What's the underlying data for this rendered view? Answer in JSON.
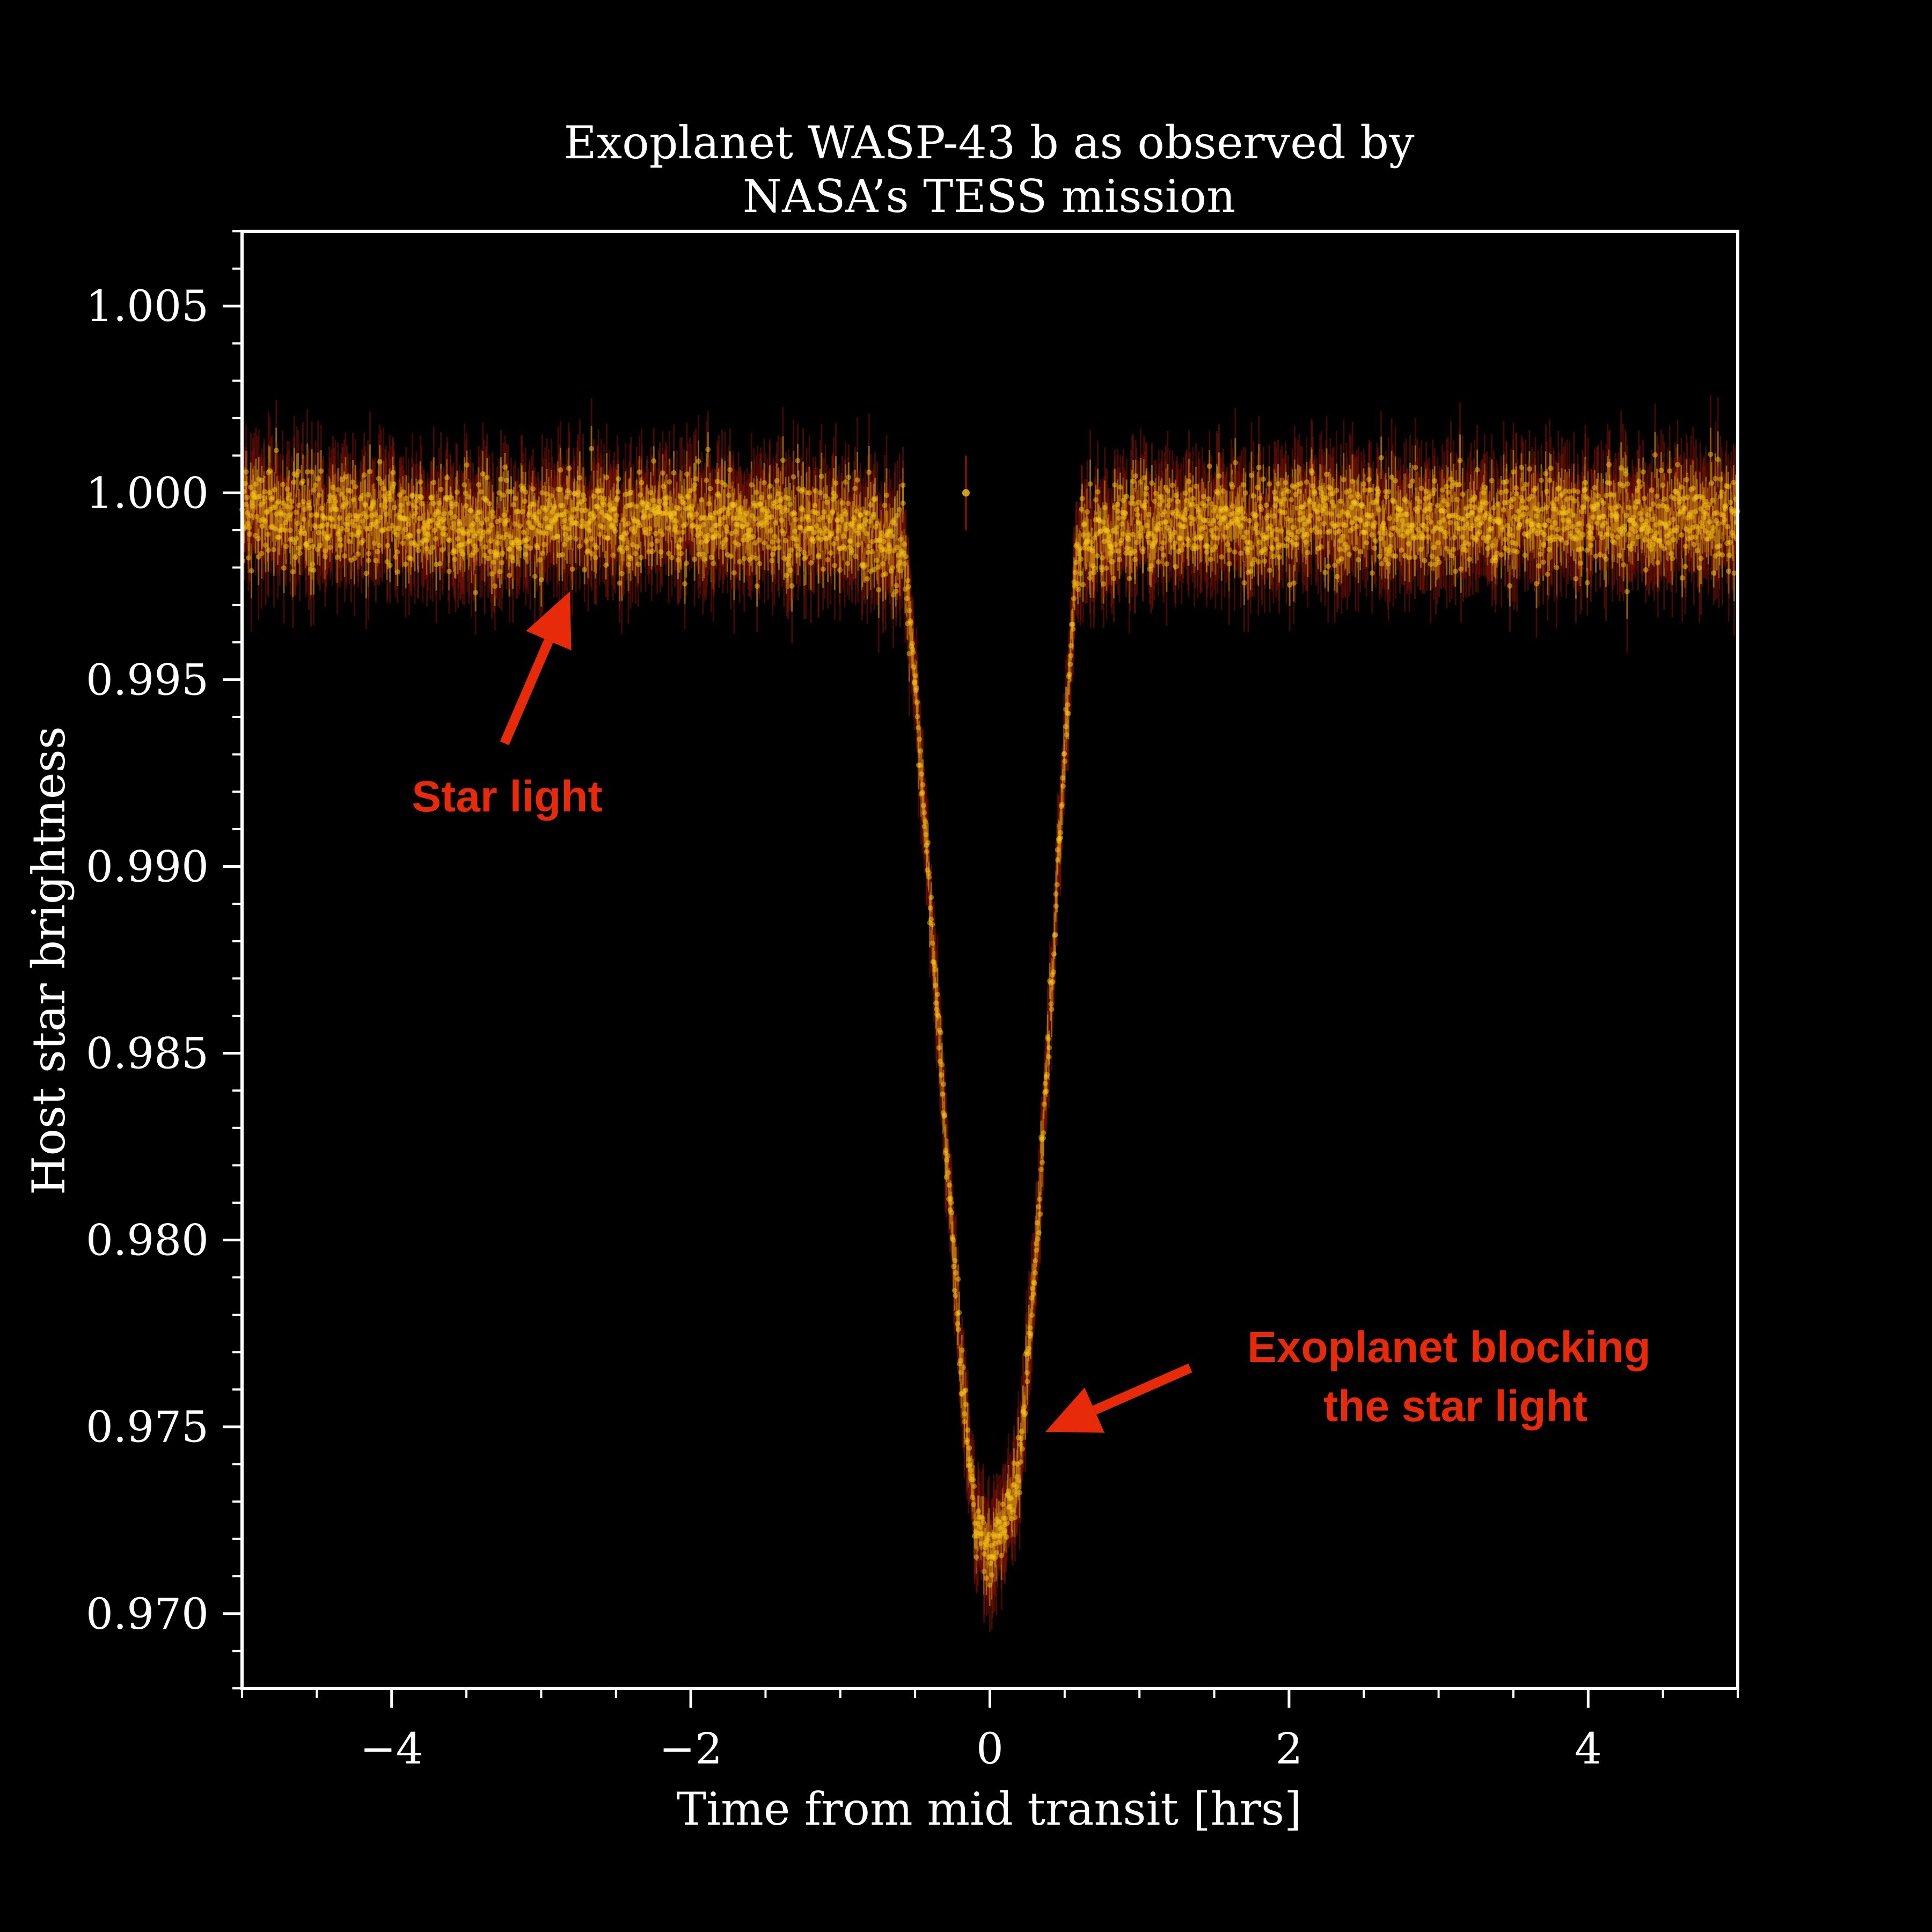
{
  "chart_data": {
    "type": "scatter",
    "title_lines": [
      "Exoplanet WASP-43 b as observed by",
      "NASA’s TESS mission"
    ],
    "xlabel": "Time from mid transit [hrs]",
    "ylabel": "Host star brightness",
    "xlim": [
      -5,
      5
    ],
    "ylim": [
      0.968,
      1.007
    ],
    "x_ticks": [
      -4,
      -2,
      0,
      2,
      4
    ],
    "x_tick_labels": [
      "−4",
      "−2",
      "0",
      "2",
      "4"
    ],
    "y_ticks": [
      0.97,
      0.975,
      0.98,
      0.985,
      0.99,
      0.995,
      1.0,
      1.005
    ],
    "y_tick_labels": [
      "0.970",
      "0.975",
      "0.980",
      "0.985",
      "0.990",
      "0.995",
      "1.000",
      "1.005"
    ],
    "grid": false,
    "series": [
      {
        "marker": "point-with-errorbar",
        "color": "#f5c518",
        "error_color": "#7a1208",
        "outside_transit_level": 0.9992,
        "transit_center": 0,
        "transit_start": -0.58,
        "transit_end": 0.58,
        "minimum_level": 0.971,
        "typical_scatter": 0.0011,
        "typical_error": 0.0012,
        "samples": [
          {
            "x": -4.8,
            "y": 0.9994
          },
          {
            "x": -4.0,
            "y": 0.9993
          },
          {
            "x": -3.0,
            "y": 0.9992
          },
          {
            "x": -2.0,
            "y": 0.9993
          },
          {
            "x": -1.0,
            "y": 0.9992
          },
          {
            "x": -0.58,
            "y": 0.9985
          },
          {
            "x": -0.5,
            "y": 0.995
          },
          {
            "x": -0.4,
            "y": 0.989
          },
          {
            "x": -0.3,
            "y": 0.983
          },
          {
            "x": -0.2,
            "y": 0.977
          },
          {
            "x": -0.1,
            "y": 0.9725
          },
          {
            "x": 0.0,
            "y": 0.9715
          },
          {
            "x": 0.1,
            "y": 0.9725
          },
          {
            "x": 0.2,
            "y": 0.974
          },
          {
            "x": 0.3,
            "y": 0.979
          },
          {
            "x": 0.4,
            "y": 0.986
          },
          {
            "x": 0.5,
            "y": 0.993
          },
          {
            "x": 0.58,
            "y": 0.9985
          },
          {
            "x": 1.0,
            "y": 0.9992
          },
          {
            "x": 2.0,
            "y": 0.9993
          },
          {
            "x": 3.0,
            "y": 0.9992
          },
          {
            "x": 4.0,
            "y": 0.9993
          },
          {
            "x": 4.9,
            "y": 0.9993
          }
        ],
        "outliers": [
          {
            "x": -0.16,
            "y": 1.0
          }
        ]
      }
    ],
    "annotations": [
      {
        "label": "Star light",
        "color": "#e62a0a",
        "arrow_tip": {
          "x": -2.8,
          "y": 0.9975
        },
        "text_anchor": {
          "x": -3.2,
          "y": 0.9918
        }
      },
      {
        "label": [
          "Exoplanet blocking",
          "the star light"
        ],
        "color": "#e62a0a",
        "arrow_tip": {
          "x": 0.38,
          "y": 0.9748
        },
        "text_anchor": {
          "x": 3.1,
          "y": 0.9764
        }
      }
    ]
  }
}
